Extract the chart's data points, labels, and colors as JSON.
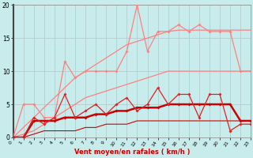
{
  "x": [
    0,
    1,
    2,
    3,
    4,
    5,
    6,
    7,
    8,
    9,
    10,
    11,
    12,
    13,
    14,
    15,
    16,
    17,
    18,
    19,
    20,
    21,
    22,
    23
  ],
  "rafales_jagged": [
    0,
    5,
    5,
    3,
    3,
    11.5,
    9,
    10,
    10,
    10,
    10,
    13,
    20,
    13,
    16,
    16,
    17,
    16,
    17,
    16,
    16,
    16,
    10,
    10
  ],
  "rafales_upper_env": [
    0,
    1.5,
    3,
    4.5,
    6,
    7.5,
    9,
    10,
    11,
    12,
    13,
    14,
    14.5,
    15,
    15.5,
    16,
    16.2,
    16.2,
    16.2,
    16.2,
    16.2,
    16.2,
    16.2,
    16.2
  ],
  "rafales_lower_env": [
    0,
    0.5,
    1,
    2,
    3,
    4,
    5,
    6,
    6.5,
    7,
    7.5,
    8,
    8.5,
    9,
    9.5,
    10,
    10,
    10,
    10,
    10,
    10,
    10,
    10,
    10
  ],
  "vent_jagged": [
    0,
    0,
    3,
    2,
    3,
    6.5,
    3,
    4,
    5,
    3.5,
    5,
    6,
    4,
    5,
    7.5,
    5,
    6.5,
    6.5,
    3,
    6.5,
    6.5,
    1,
    2,
    2
  ],
  "vent_smooth": [
    0,
    0,
    2.5,
    2.5,
    2.5,
    3,
    3,
    3,
    3.5,
    3.5,
    4,
    4,
    4.5,
    4.5,
    4.5,
    5,
    5,
    5,
    5,
    5,
    5,
    5,
    2.5,
    2.5
  ],
  "vent_lower": [
    0,
    0,
    0.5,
    1,
    1,
    1,
    1,
    1.5,
    1.5,
    2,
    2,
    2,
    2.5,
    2.5,
    2.5,
    2.5,
    2.5,
    2.5,
    2.5,
    2.5,
    2.5,
    2.5,
    2.5,
    2.5
  ],
  "bg_color": "#c8ecec",
  "grid_color": "#b0c8c8",
  "light_pink": "#ff8080",
  "dark_red": "#cc0000",
  "medium_red": "#dd2222",
  "xlabel": "Vent moyen/en rafales ( km/h )",
  "xlim": [
    0,
    23
  ],
  "ylim": [
    0,
    20
  ],
  "yticks": [
    0,
    5,
    10,
    15,
    20
  ],
  "xticks": [
    0,
    1,
    2,
    3,
    4,
    5,
    6,
    7,
    8,
    9,
    10,
    11,
    12,
    13,
    14,
    15,
    16,
    17,
    18,
    19,
    20,
    21,
    22,
    23
  ]
}
